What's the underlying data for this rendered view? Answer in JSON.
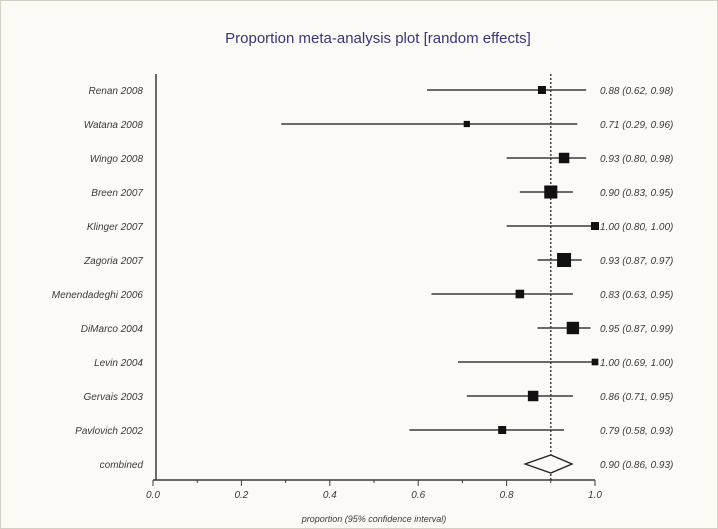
{
  "chart_data": {
    "type": "scatter",
    "title": "Proportion meta-analysis plot [random effects]",
    "xlabel": "proportion (95% confidence interval)",
    "xlim": [
      0.0,
      1.0
    ],
    "xticks": [
      "0.0",
      "0.2",
      "0.4",
      "0.6",
      "0.8",
      "1.0"
    ],
    "xtick_values": [
      0.0,
      0.2,
      0.4,
      0.6,
      0.8,
      1.0
    ],
    "reference_line": 0.9,
    "studies": [
      {
        "label": "Renan 2008",
        "estimate": 0.88,
        "lower": 0.62,
        "upper": 0.98,
        "ci_text": "0.88 (0.62, 0.98)",
        "weight": 1.0
      },
      {
        "label": "Watana 2008",
        "estimate": 0.71,
        "lower": 0.29,
        "upper": 0.96,
        "ci_text": "0.71 (0.29, 0.96)",
        "weight": 0.5
      },
      {
        "label": "Wingo 2008",
        "estimate": 0.93,
        "lower": 0.8,
        "upper": 0.98,
        "ci_text": "0.93 (0.80, 0.98)",
        "weight": 2.0
      },
      {
        "label": "Breen 2007",
        "estimate": 0.9,
        "lower": 0.83,
        "upper": 0.95,
        "ci_text": "0.90 (0.83, 0.95)",
        "weight": 3.4
      },
      {
        "label": "Klinger 2007",
        "estimate": 1.0,
        "lower": 0.8,
        "upper": 1.0,
        "ci_text": "1.00 (0.80, 1.00)",
        "weight": 1.0
      },
      {
        "label": "Zagoria 2007",
        "estimate": 0.93,
        "lower": 0.87,
        "upper": 0.97,
        "ci_text": "0.93 (0.87, 0.97)",
        "weight": 4.0
      },
      {
        "label": "Menendadeghi 2006",
        "estimate": 0.83,
        "lower": 0.63,
        "upper": 0.95,
        "ci_text": "0.83 (0.63, 0.95)",
        "weight": 1.2
      },
      {
        "label": "DiMarco 2004",
        "estimate": 0.95,
        "lower": 0.87,
        "upper": 0.99,
        "ci_text": "0.95 (0.87, 0.99)",
        "weight": 3.0
      },
      {
        "label": "Levin 2004",
        "estimate": 1.0,
        "lower": 0.69,
        "upper": 1.0,
        "ci_text": "1.00 (0.69, 1.00)",
        "weight": 0.6
      },
      {
        "label": "Gervais 2003",
        "estimate": 0.86,
        "lower": 0.71,
        "upper": 0.95,
        "ci_text": "0.86 (0.71, 0.95)",
        "weight": 2.0
      },
      {
        "label": "Pavlovich 2002",
        "estimate": 0.79,
        "lower": 0.58,
        "upper": 0.93,
        "ci_text": "0.79 (0.58, 0.93)",
        "weight": 1.0
      }
    ],
    "combined": {
      "label": "combined",
      "estimate": 0.9,
      "lower": 0.86,
      "upper": 0.93,
      "ci_text": "0.90 (0.86, 0.93)"
    },
    "colors": {
      "marker": "#111111",
      "line": "#3a3a3a",
      "title": "#3b3478",
      "background": "#fbfaf6"
    }
  }
}
